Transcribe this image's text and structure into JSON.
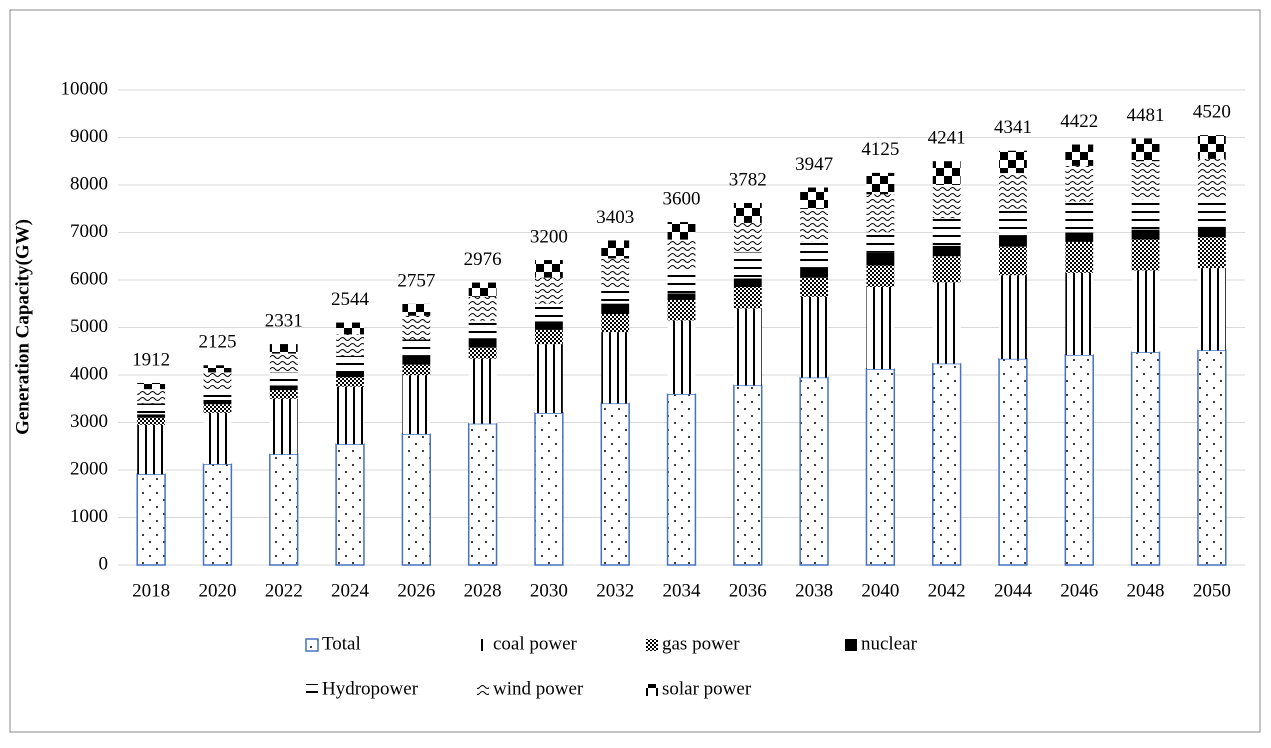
{
  "chart_data": {
    "type": "stacked_bar",
    "y_label": "Generation Capacity(GW)",
    "categories": [
      "2018",
      "2020",
      "2022",
      "2024",
      "2026",
      "2028",
      "2030",
      "2032",
      "2034",
      "2036",
      "2038",
      "2040",
      "2042",
      "2044",
      "2046",
      "2048",
      "2050"
    ],
    "series": [
      {
        "name": "Total",
        "color": "#4472c4",
        "values": [
          1912,
          2125,
          2331,
          2544,
          2757,
          2976,
          3200,
          3403,
          3600,
          3782,
          3947,
          4125,
          4241,
          4341,
          4422,
          4481,
          4520
        ]
      },
      {
        "name": "coal power",
        "color": "#000000",
        "values": [
          1040,
          1080,
          1170,
          1210,
          1240,
          1370,
          1450,
          1500,
          1550,
          1620,
          1700,
          1730,
          1710,
          1760,
          1730,
          1720,
          1730
        ]
      },
      {
        "name": "gas power",
        "color": "#000000",
        "values": [
          150,
          180,
          180,
          200,
          220,
          230,
          300,
          380,
          430,
          450,
          400,
          450,
          550,
          600,
          650,
          650,
          650
        ]
      },
      {
        "name": "nuclear",
        "color": "#000000",
        "values": [
          70,
          90,
          100,
          130,
          200,
          200,
          180,
          220,
          140,
          180,
          220,
          270,
          220,
          230,
          200,
          210,
          220
        ]
      },
      {
        "name": "Hydropower",
        "color": "#000000",
        "values": [
          230,
          230,
          270,
          320,
          330,
          370,
          370,
          350,
          480,
          550,
          550,
          430,
          580,
          570,
          650,
          640,
          600
        ]
      },
      {
        "name": "wind power",
        "color": "#000000",
        "values": [
          300,
          350,
          400,
          450,
          500,
          500,
          550,
          600,
          650,
          620,
          680,
          800,
          700,
          750,
          750,
          800,
          830
        ]
      },
      {
        "name": "solar power",
        "color": "#000000",
        "values": [
          130,
          150,
          200,
          250,
          250,
          300,
          370,
          380,
          370,
          420,
          450,
          450,
          500,
          470,
          450,
          480,
          500
        ]
      }
    ],
    "ylim": [
      0,
      10000
    ],
    "yticks": [
      0,
      1000,
      2000,
      3000,
      4000,
      5000,
      6000,
      7000,
      8000,
      9000,
      10000
    ],
    "grid": true,
    "legend": "bottom"
  }
}
